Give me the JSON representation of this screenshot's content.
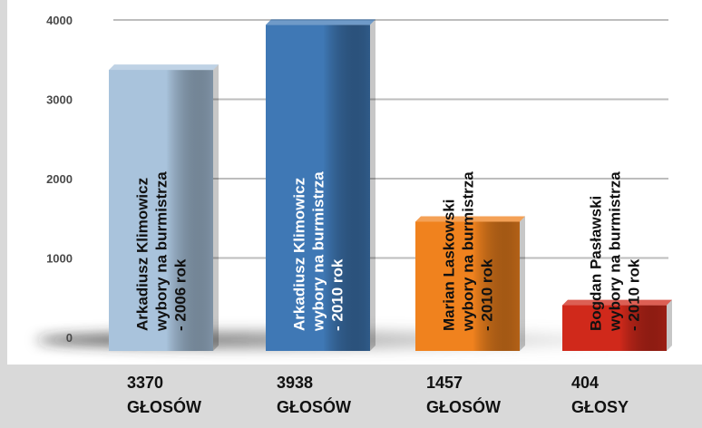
{
  "chart_data": {
    "type": "bar",
    "title": "",
    "xlabel": "",
    "ylabel": "",
    "ylim": [
      0,
      4000
    ],
    "yticks": [
      "0",
      "1000",
      "2000",
      "3000",
      "4000"
    ],
    "grid": true,
    "categories": [
      [
        "Arkadiusz Klimowicz",
        "wybory na burmistrza",
        "- 2006 rok"
      ],
      [
        "Arkadiusz Klimowicz",
        "wybory na burmistrza",
        "- 2010 rok"
      ],
      [
        "Marian Laskowski",
        "wybory na burmistrza",
        "- 2010 rok"
      ],
      [
        "Bogdan Pasławski",
        "wybory na burmistrza",
        "- 2010 rok"
      ]
    ],
    "values": [
      3370,
      3938,
      1457,
      404
    ],
    "value_labels": [
      [
        "3370",
        "GŁOSÓW"
      ],
      [
        "3938",
        "GŁOSÓW"
      ],
      [
        "1457",
        "GŁOSÓW"
      ],
      [
        "404",
        "GŁOSY"
      ]
    ],
    "colors": [
      "#a9c3dc",
      "#3f78b5",
      "#f0821e",
      "#d0291b"
    ],
    "label_colors": [
      "#111111",
      "#ffffff",
      "#111111",
      "#111111"
    ]
  }
}
